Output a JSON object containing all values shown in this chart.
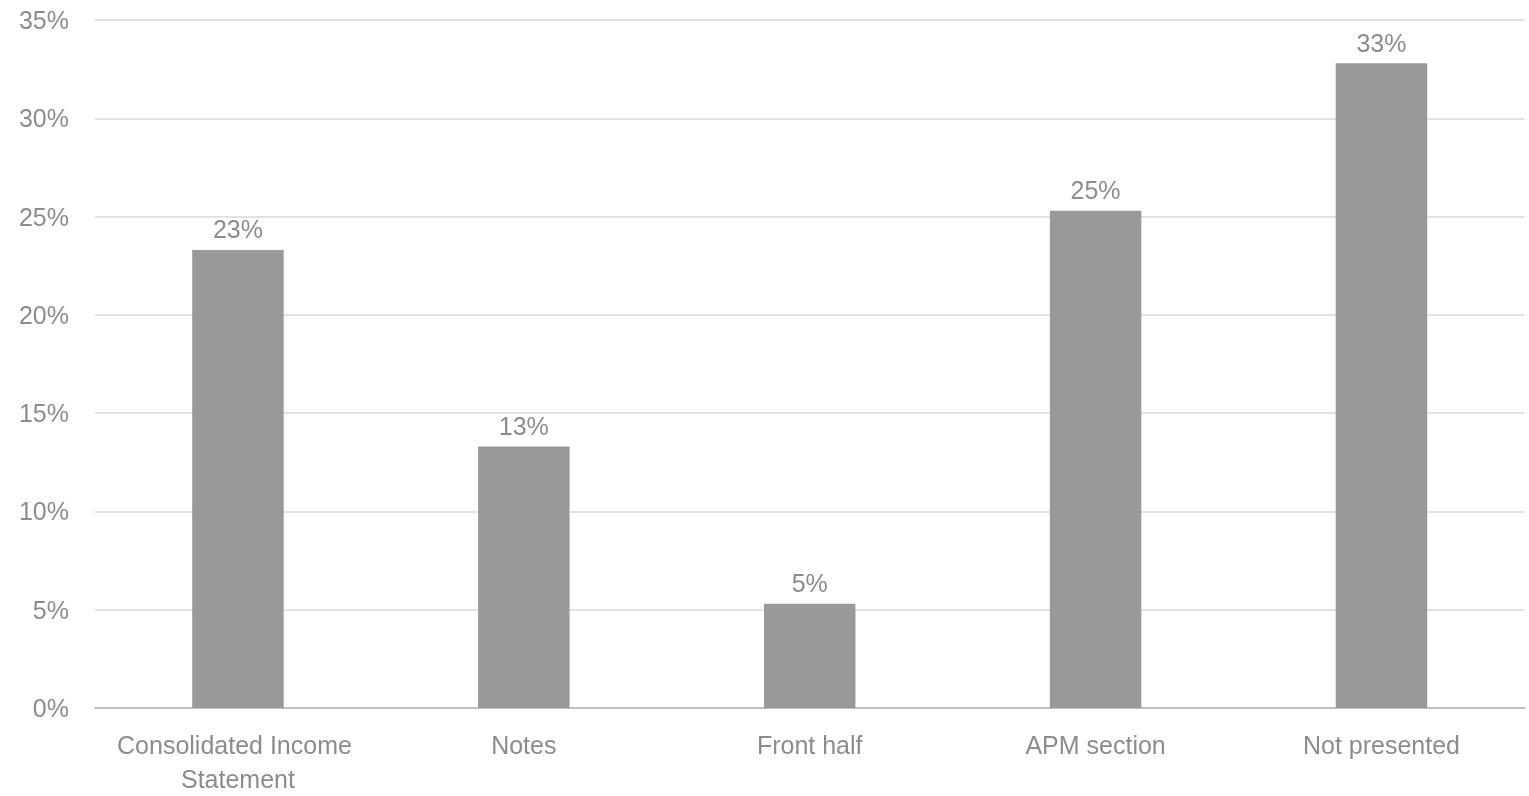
{
  "chart_data": {
    "type": "bar",
    "categories": [
      "Consolidated Income Statement",
      "Notes",
      "Front half",
      "APM section",
      "Not presented"
    ],
    "values": [
      23.3,
      13.3,
      5.3,
      25.3,
      32.8
    ],
    "value_labels": [
      "23%",
      "13%",
      "5%",
      "25%",
      "33%"
    ],
    "color": "#999999",
    "ylim": [
      0,
      35
    ],
    "yticks": [
      {
        "value": 0,
        "label": "0%"
      },
      {
        "value": 5,
        "label": "5%"
      },
      {
        "value": 10,
        "label": "10%"
      },
      {
        "value": 15,
        "label": "15%"
      },
      {
        "value": 20,
        "label": "20%"
      },
      {
        "value": 25,
        "label": "25%"
      },
      {
        "value": 30,
        "label": "30%"
      },
      {
        "value": 35,
        "label": "35%"
      }
    ],
    "grid": "y"
  }
}
